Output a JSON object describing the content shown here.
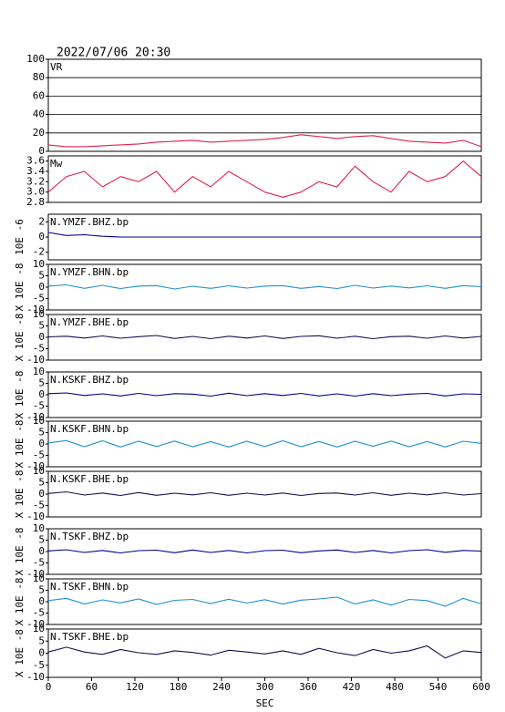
{
  "chart_data": [
    {
      "type": "line",
      "title": "2022/07/06 20:30",
      "label": "VR",
      "color": "#e0204a",
      "x": [
        0,
        25,
        50,
        75,
        100,
        125,
        150,
        175,
        200,
        225,
        250,
        275,
        300,
        325,
        350,
        375,
        400,
        425,
        450,
        475,
        500,
        525,
        550,
        575,
        600
      ],
      "values": [
        7,
        5,
        5,
        6,
        7,
        8,
        10,
        11,
        12,
        10,
        11,
        12,
        13,
        15,
        18,
        16,
        14,
        16,
        17,
        14,
        11,
        10,
        9,
        12,
        5
      ],
      "ylim": [
        0,
        100
      ],
      "yticks": [
        0,
        20,
        40,
        60,
        80,
        100
      ],
      "grid": true
    },
    {
      "type": "line",
      "label": "Mw",
      "color": "#e0204a",
      "x": [
        0,
        25,
        50,
        75,
        100,
        125,
        150,
        175,
        200,
        225,
        250,
        275,
        300,
        325,
        350,
        375,
        400,
        425,
        450,
        475,
        500,
        525,
        550,
        575,
        600
      ],
      "values": [
        3.0,
        3.3,
        3.4,
        3.1,
        3.3,
        3.2,
        3.4,
        3.0,
        3.3,
        3.1,
        3.4,
        3.2,
        3.0,
        2.9,
        3.0,
        3.2,
        3.1,
        3.5,
        3.2,
        3.0,
        3.4,
        3.2,
        3.3,
        3.6,
        3.3
      ],
      "ylim": [
        2.8,
        3.7
      ],
      "yticks": [
        2.8,
        {
          "value": 3,
          "label": "3.0"
        },
        3.2,
        3.4,
        3.6
      ],
      "grid": false
    },
    {
      "type": "line",
      "label": "N.YMZF.BHZ.bp",
      "ylabel": "10E -6",
      "color": "#00008b",
      "x": [
        0,
        25,
        50,
        75,
        100,
        125,
        150,
        175,
        200,
        225,
        250,
        275,
        300,
        325,
        350,
        375,
        400,
        425,
        450,
        475,
        500,
        525,
        550,
        575,
        600
      ],
      "values": [
        0.6,
        0.2,
        0.3,
        0.1,
        0,
        0,
        0,
        0,
        0,
        0,
        0,
        0,
        0,
        0,
        0,
        0,
        0,
        0,
        0,
        0,
        0,
        0,
        0,
        0,
        0
      ],
      "ylim": [
        -3,
        3
      ],
      "yticks": [
        -2,
        0,
        2
      ],
      "grid": false
    },
    {
      "type": "line",
      "label": "N.YMZF.BHN.bp",
      "ylabel": "X 10E -8",
      "color": "#1f8fd0",
      "x": [
        0,
        25,
        50,
        75,
        100,
        125,
        150,
        175,
        200,
        225,
        250,
        275,
        300,
        325,
        350,
        375,
        400,
        425,
        450,
        475,
        500,
        525,
        550,
        575,
        600
      ],
      "values": [
        0.5,
        1,
        -0.5,
        0.8,
        -0.6,
        0.5,
        0.7,
        -0.8,
        0.4,
        -0.5,
        0.6,
        -0.4,
        0.5,
        0.7,
        -0.5,
        0.3,
        -0.6,
        0.8,
        -0.4,
        0.5,
        -0.3,
        0.6,
        -0.5,
        0.7,
        0.2
      ],
      "ylim": [
        -10,
        10
      ],
      "yticks": [
        -10,
        -5,
        0,
        5,
        10
      ],
      "grid": false
    },
    {
      "type": "line",
      "label": "N.YMZF.BHE.bp",
      "ylabel": "X 10E -8",
      "color": "#101050",
      "x": [
        0,
        25,
        50,
        75,
        100,
        125,
        150,
        175,
        200,
        225,
        250,
        275,
        300,
        325,
        350,
        375,
        400,
        425,
        450,
        475,
        500,
        525,
        550,
        575,
        600
      ],
      "values": [
        0.2,
        0.5,
        -0.3,
        0.6,
        -0.4,
        0.3,
        0.8,
        -0.5,
        0.4,
        -0.6,
        0.5,
        -0.3,
        0.6,
        -0.5,
        0.4,
        0.7,
        -0.4,
        0.5,
        -0.6,
        0.3,
        0.5,
        -0.4,
        0.6,
        -0.3,
        0.4
      ],
      "ylim": [
        -10,
        10
      ],
      "yticks": [
        -10,
        -5,
        0,
        5,
        10
      ],
      "grid": false
    },
    {
      "type": "line",
      "label": "N.KSKF.BHZ.bp",
      "ylabel": "X 10E -8",
      "color": "#00008b",
      "x": [
        0,
        25,
        50,
        75,
        100,
        125,
        150,
        175,
        200,
        225,
        250,
        275,
        300,
        325,
        350,
        375,
        400,
        425,
        450,
        475,
        500,
        525,
        550,
        575,
        600
      ],
      "values": [
        0.5,
        0.8,
        -0.3,
        0.4,
        -0.5,
        0.6,
        -0.4,
        0.5,
        0.3,
        -0.6,
        0.7,
        -0.4,
        0.5,
        -0.3,
        0.6,
        -0.5,
        0.4,
        -0.6,
        0.5,
        -0.4,
        0.3,
        0.6,
        -0.5,
        0.4,
        0.2
      ],
      "ylim": [
        -10,
        10
      ],
      "yticks": [
        -10,
        -5,
        0,
        5,
        10
      ],
      "grid": false
    },
    {
      "type": "line",
      "label": "N.KSKF.BHN.bp",
      "ylabel": "X 10E -8",
      "color": "#1f8fd0",
      "x": [
        0,
        25,
        50,
        75,
        100,
        125,
        150,
        175,
        200,
        225,
        250,
        275,
        300,
        325,
        350,
        375,
        400,
        425,
        450,
        475,
        500,
        525,
        550,
        575,
        600
      ],
      "values": [
        0.5,
        1.5,
        -1.2,
        1.4,
        -1.3,
        1.2,
        -1.1,
        1.3,
        -1.2,
        1.0,
        -1.3,
        1.2,
        -1.1,
        1.4,
        -1.2,
        1.1,
        -1.3,
        1.2,
        -1.0,
        1.3,
        -1.2,
        1.1,
        -1.3,
        1.2,
        0.3
      ],
      "ylim": [
        -10,
        10
      ],
      "yticks": [
        -10,
        -5,
        0,
        5,
        10
      ],
      "grid": false
    },
    {
      "type": "line",
      "label": "N.KSKF.BHE.bp",
      "ylabel": "X 10E -8",
      "color": "#101050",
      "x": [
        0,
        25,
        50,
        75,
        100,
        125,
        150,
        175,
        200,
        225,
        250,
        275,
        300,
        325,
        350,
        375,
        400,
        425,
        450,
        475,
        500,
        525,
        550,
        575,
        600
      ],
      "values": [
        0.3,
        1,
        -0.4,
        0.5,
        -0.6,
        0.7,
        -0.5,
        0.4,
        -0.3,
        0.6,
        -0.5,
        0.4,
        -0.4,
        0.5,
        -0.6,
        0.3,
        0.5,
        -0.4,
        0.6,
        -0.5,
        0.4,
        -0.3,
        0.6,
        -0.4,
        0.2
      ],
      "ylim": [
        -10,
        10
      ],
      "yticks": [
        -10,
        -5,
        0,
        5,
        10
      ],
      "grid": false
    },
    {
      "type": "line",
      "label": "N.TSKF.BHZ.bp",
      "ylabel": "X 10E -8",
      "color": "#00008b",
      "x": [
        0,
        25,
        50,
        75,
        100,
        125,
        150,
        175,
        200,
        225,
        250,
        275,
        300,
        325,
        350,
        375,
        400,
        425,
        450,
        475,
        500,
        525,
        550,
        575,
        600
      ],
      "values": [
        0.3,
        0.8,
        -0.4,
        0.5,
        -0.6,
        0.4,
        0.6,
        -0.5,
        0.7,
        -0.4,
        0.5,
        -0.6,
        0.4,
        0.6,
        -0.5,
        0.3,
        0.7,
        -0.4,
        0.5,
        -0.6,
        0.4,
        0.8,
        -0.3,
        0.5,
        0.2
      ],
      "ylim": [
        -10,
        10
      ],
      "yticks": [
        -10,
        -5,
        0,
        5,
        10
      ],
      "grid": false
    },
    {
      "type": "line",
      "label": "N.TSKF.BHN.bp",
      "ylabel": "X 10E -8",
      "color": "#1f8fd0",
      "x": [
        0,
        25,
        50,
        75,
        100,
        125,
        150,
        175,
        200,
        225,
        250,
        275,
        300,
        325,
        350,
        375,
        400,
        425,
        450,
        475,
        500,
        525,
        550,
        575,
        600
      ],
      "values": [
        0.5,
        1.5,
        -1,
        0.8,
        -0.5,
        1.2,
        -1.2,
        0.6,
        1.0,
        -0.8,
        1.1,
        -0.6,
        0.9,
        -1.0,
        0.7,
        1.2,
        2.0,
        -1.0,
        0.8,
        -1.5,
        1.0,
        0.5,
        -2.0,
        1.5,
        -1.0
      ],
      "ylim": [
        -10,
        10
      ],
      "yticks": [
        -10,
        -5,
        0,
        5,
        10
      ],
      "grid": false
    },
    {
      "type": "line",
      "label": "N.TSKF.BHE.bp",
      "ylabel": "X 10E -8",
      "color": "#101050",
      "x": [
        0,
        25,
        50,
        75,
        100,
        125,
        150,
        175,
        200,
        225,
        250,
        275,
        300,
        325,
        350,
        375,
        400,
        425,
        450,
        475,
        500,
        525,
        550,
        575,
        600
      ],
      "values": [
        0.5,
        2.5,
        0.5,
        -0.5,
        1.5,
        0.2,
        -0.5,
        1.0,
        0.3,
        -0.8,
        1.2,
        0.5,
        -0.3,
        1.0,
        -0.5,
        2.0,
        0.2,
        -1.0,
        1.5,
        0.0,
        1.0,
        3.0,
        -2.0,
        1.0,
        0.3
      ],
      "ylim": [
        -10,
        10
      ],
      "yticks": [
        -10,
        -5,
        0,
        5,
        10
      ],
      "grid": false,
      "xlim": [
        0,
        600
      ],
      "xticks": [
        0,
        60,
        120,
        180,
        240,
        300,
        360,
        420,
        480,
        540,
        600
      ],
      "xlabel": "SEC"
    }
  ]
}
